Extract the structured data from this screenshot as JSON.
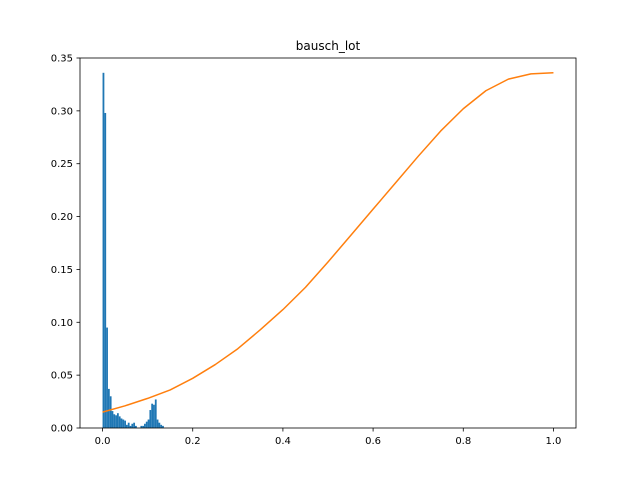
{
  "chart_data": {
    "type": "bar+line",
    "title": "bausch_lot",
    "xlabel": "",
    "ylabel": "",
    "xlim": [
      -0.05,
      1.05
    ],
    "ylim": [
      0,
      0.35
    ],
    "grid": false,
    "x_ticks": [
      0.0,
      0.2,
      0.4,
      0.6,
      0.8,
      1.0
    ],
    "x_tick_labels": [
      "0.0",
      "0.2",
      "0.4",
      "0.6",
      "0.8",
      "1.0"
    ],
    "y_ticks": [
      0.0,
      0.05,
      0.1,
      0.15,
      0.2,
      0.25,
      0.3,
      0.35
    ],
    "y_tick_labels": [
      "0.00",
      "0.05",
      "0.10",
      "0.15",
      "0.20",
      "0.25",
      "0.30",
      "0.35"
    ],
    "histogram": {
      "color": "#1f77b4",
      "bin_width": 0.004,
      "bins": [
        {
          "x": 0.0,
          "value": 0.336
        },
        {
          "x": 0.004,
          "value": 0.298
        },
        {
          "x": 0.008,
          "value": 0.095
        },
        {
          "x": 0.012,
          "value": 0.037
        },
        {
          "x": 0.016,
          "value": 0.03
        },
        {
          "x": 0.02,
          "value": 0.016
        },
        {
          "x": 0.024,
          "value": 0.013
        },
        {
          "x": 0.028,
          "value": 0.012
        },
        {
          "x": 0.032,
          "value": 0.014
        },
        {
          "x": 0.036,
          "value": 0.011
        },
        {
          "x": 0.04,
          "value": 0.009
        },
        {
          "x": 0.044,
          "value": 0.008
        },
        {
          "x": 0.048,
          "value": 0.007
        },
        {
          "x": 0.052,
          "value": 0.003
        },
        {
          "x": 0.056,
          "value": 0.005
        },
        {
          "x": 0.06,
          "value": 0.002
        },
        {
          "x": 0.064,
          "value": 0.004
        },
        {
          "x": 0.068,
          "value": 0.005
        },
        {
          "x": 0.072,
          "value": 0.002
        },
        {
          "x": 0.084,
          "value": 0.002
        },
        {
          "x": 0.088,
          "value": 0.002
        },
        {
          "x": 0.092,
          "value": 0.004
        },
        {
          "x": 0.096,
          "value": 0.006
        },
        {
          "x": 0.1,
          "value": 0.008
        },
        {
          "x": 0.104,
          "value": 0.017
        },
        {
          "x": 0.108,
          "value": 0.023
        },
        {
          "x": 0.112,
          "value": 0.022
        },
        {
          "x": 0.116,
          "value": 0.027
        },
        {
          "x": 0.12,
          "value": 0.008
        },
        {
          "x": 0.124,
          "value": 0.005
        },
        {
          "x": 0.128,
          "value": 0.003
        },
        {
          "x": 0.132,
          "value": 0.002
        }
      ]
    },
    "line": {
      "color": "#ff7f0e",
      "x": [
        0.0,
        0.05,
        0.1,
        0.15,
        0.2,
        0.25,
        0.3,
        0.35,
        0.4,
        0.45,
        0.5,
        0.55,
        0.6,
        0.65,
        0.7,
        0.75,
        0.8,
        0.85,
        0.9,
        0.95,
        1.0
      ],
      "y": [
        0.015,
        0.021,
        0.028,
        0.036,
        0.047,
        0.06,
        0.075,
        0.093,
        0.112,
        0.133,
        0.157,
        0.182,
        0.207,
        0.232,
        0.257,
        0.281,
        0.302,
        0.319,
        0.33,
        0.335,
        0.336
      ]
    }
  }
}
